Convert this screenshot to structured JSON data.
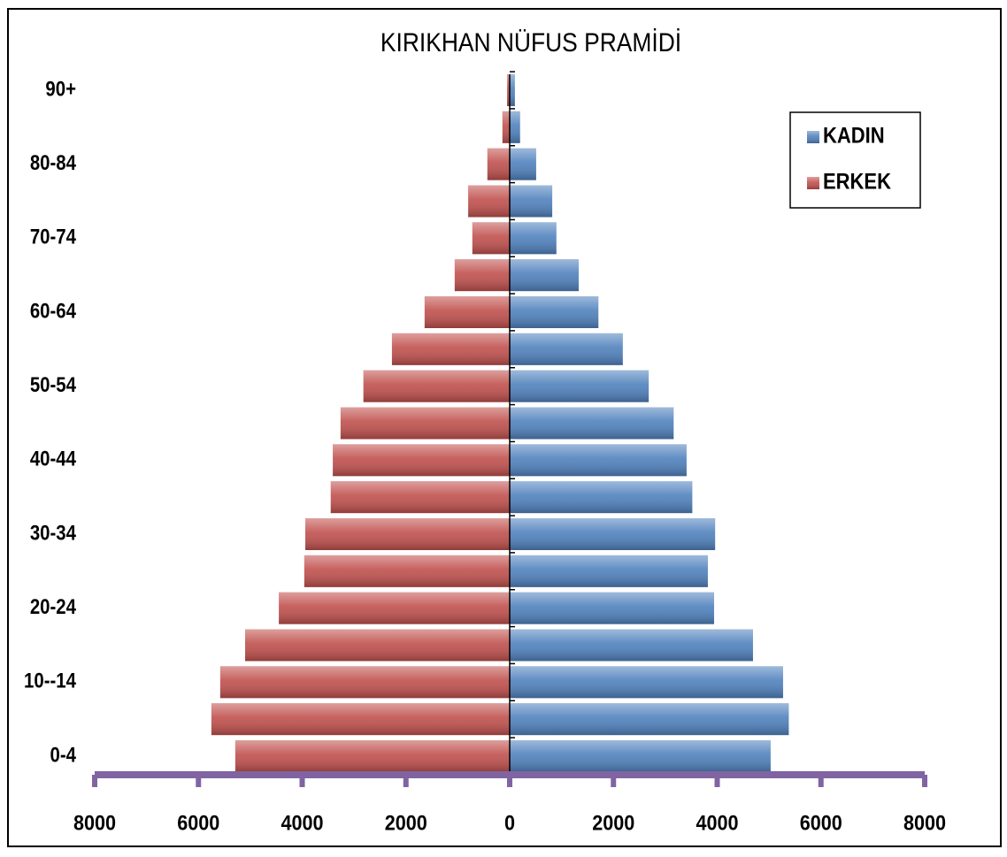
{
  "chart_data": {
    "type": "pyramid",
    "title": "KIRIKHAN NÜFUS PRAMİDİ",
    "categories": [
      "0-4",
      null,
      "10--14",
      null,
      "20-24",
      null,
      "30-34",
      null,
      "40-44",
      null,
      "50-54",
      null,
      "60-64",
      null,
      "70-74",
      null,
      "80-84",
      null,
      "90+"
    ],
    "series": [
      {
        "name": "KADIN",
        "color": "#4f81bd",
        "values": [
          5030,
          5380,
          5270,
          4690,
          3940,
          3820,
          3960,
          3520,
          3410,
          3160,
          2680,
          2180,
          1710,
          1330,
          900,
          820,
          510,
          200,
          100
        ]
      },
      {
        "name": "ERKEK",
        "color": "#c0504d",
        "values": [
          -5290,
          -5750,
          -5580,
          -5100,
          -4450,
          -3960,
          -3940,
          -3450,
          -3410,
          -3260,
          -2820,
          -2270,
          -1640,
          -1060,
          -720,
          -800,
          -430,
          -140,
          -50
        ]
      }
    ],
    "xlim": [
      -8000,
      8000
    ],
    "xticks": [
      {
        "value": -8000,
        "label": "8000"
      },
      {
        "value": -6000,
        "label": "6000"
      },
      {
        "value": -4000,
        "label": "4000"
      },
      {
        "value": -2000,
        "label": "2000"
      },
      0,
      2000,
      4000,
      6000,
      8000
    ],
    "legend": "top-right"
  }
}
